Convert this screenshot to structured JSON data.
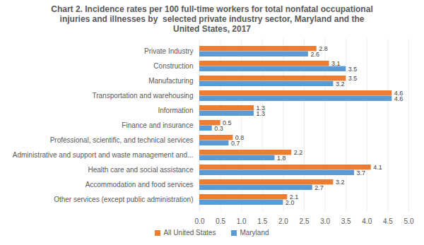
{
  "chart_data": {
    "type": "bar",
    "orientation": "horizontal",
    "title": "Chart 2. Incidence rates per 100 full-time workers for total nonfatal occupational injuries and illnesses by  selected private industry sector, Maryland and the United States, 2017",
    "categories": [
      "Private Industry",
      "Construction",
      "Manufacturing",
      "Transportation and warehousing",
      "Information",
      "Finance and insurance",
      "Professional, scientific, and technical services",
      "Administrative and support and waste management and...",
      "Health care and social assistance",
      "Accommodation and food services",
      "Other services (except public administration)"
    ],
    "series": [
      {
        "name": "All United States",
        "color": "#ED7D31",
        "values": [
          2.8,
          3.1,
          3.5,
          4.6,
          1.3,
          0.5,
          0.8,
          2.2,
          4.1,
          3.2,
          2.1
        ],
        "value_labels": [
          "2.8",
          "3.1",
          "3.5",
          "4.6",
          "1.3",
          "0.5",
          "0.8",
          "2.2",
          "4.1",
          "3.2",
          "2.1"
        ]
      },
      {
        "name": "Maryland",
        "color": "#5B9BD5",
        "values": [
          2.6,
          3.5,
          3.2,
          4.6,
          1.3,
          0.3,
          0.7,
          1.8,
          3.7,
          2.7,
          2.0
        ],
        "value_labels": [
          "2.6",
          "3.5",
          "3.2",
          "4.6",
          "1.3",
          "0.3",
          "0.7",
          "1.8",
          "3.7",
          "2.7",
          "2.0"
        ]
      }
    ],
    "xlim": [
      0,
      5
    ],
    "xticks": [
      {
        "value": 0,
        "label": "0.0"
      },
      {
        "value": 0.5,
        "label": "0.5"
      },
      {
        "value": 1,
        "label": "1.0"
      },
      {
        "value": 1.5,
        "label": "1.5"
      },
      {
        "value": 2,
        "label": "2.0"
      },
      {
        "value": 2.5,
        "label": "2.5"
      },
      {
        "value": 3,
        "label": "3.0"
      },
      {
        "value": 3.5,
        "label": "3.5"
      },
      {
        "value": 4,
        "label": "4.0"
      },
      {
        "value": 4.5,
        "label": "4.5"
      },
      {
        "value": 5,
        "label": "5.0"
      }
    ],
    "grid": true,
    "legend": "bottom",
    "data_labels": true
  }
}
